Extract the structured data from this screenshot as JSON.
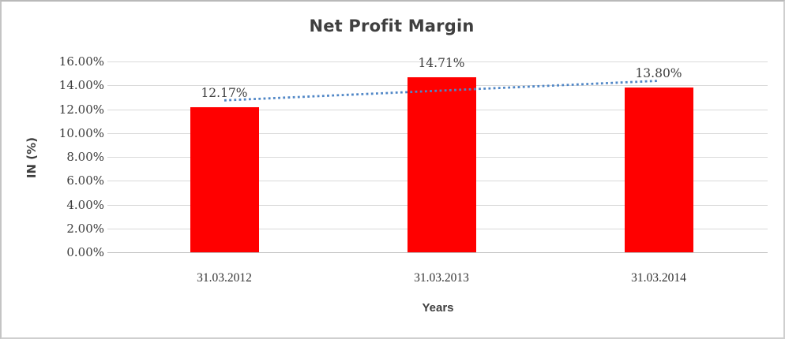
{
  "chart_data": {
    "type": "bar",
    "title": "Net Profit Margin",
    "xlabel": "Years",
    "ylabel": "IN (%)",
    "categories": [
      "31.03.2012",
      "31.03.2013",
      "31.03.2014"
    ],
    "values": [
      12.17,
      14.71,
      13.8
    ],
    "data_labels": [
      "12.17%",
      "14.71%",
      "13.80%"
    ],
    "ylim": [
      0,
      16
    ],
    "ytick_step": 2,
    "ytick_labels": [
      "0.00%",
      "2.00%",
      "4.00%",
      "6.00%",
      "8.00%",
      "10.00%",
      "12.00%",
      "14.00%",
      "16.00%"
    ],
    "grid": true,
    "legend": "none",
    "bar_color": "#ff0000",
    "trendline": {
      "type": "linear",
      "style": "dotted",
      "color": "#4f86c6",
      "start_value": 12.74,
      "end_value": 14.38
    },
    "colors": {
      "gridline": "#d9d9d9",
      "axis_line": "#bfbfbf",
      "title_text": "#3f3f3f",
      "label_text": "#383838"
    }
  }
}
